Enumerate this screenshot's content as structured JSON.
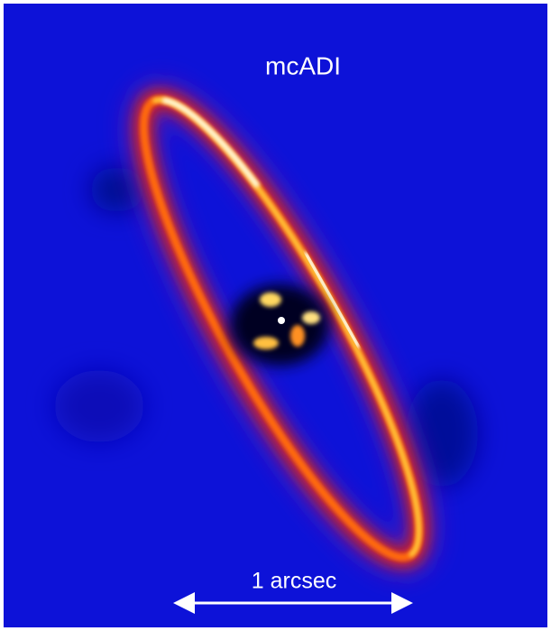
{
  "title": "mcADI",
  "scale_bar": {
    "label": "1 arcsec"
  }
}
